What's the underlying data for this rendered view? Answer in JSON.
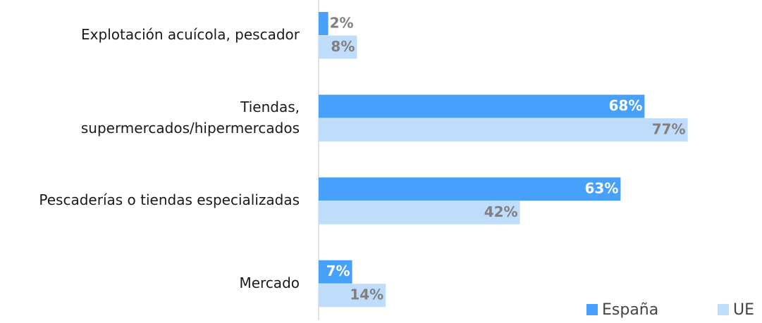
{
  "chart_data": {
    "type": "bar",
    "orientation": "horizontal",
    "categories": [
      "Explotación acuícola, pescador",
      "Tiendas,\nsupermercados/hipermercados",
      "Pescaderías o tiendas especializadas",
      "Mercado"
    ],
    "series": [
      {
        "name": "España",
        "color": "#47a0fb",
        "values": [
          2,
          68,
          63,
          7
        ],
        "value_labels": [
          "2%",
          "68%",
          "63%",
          "7%"
        ]
      },
      {
        "name": "UE",
        "color": "#bfdcfb",
        "values": [
          8,
          77,
          42,
          14
        ],
        "value_labels": [
          "8%",
          "77%",
          "42%",
          "14%"
        ]
      }
    ],
    "legend": "bottom-right"
  }
}
